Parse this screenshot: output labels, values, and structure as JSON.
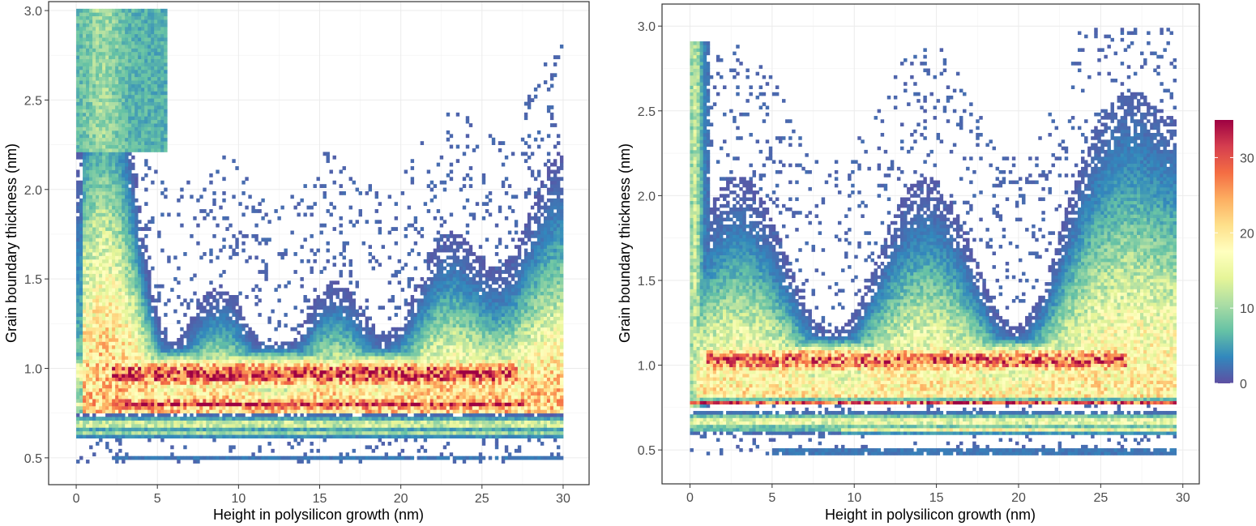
{
  "colormap": [
    "#5E4FA2",
    "#3288BD",
    "#66C2A5",
    "#ABDDA4",
    "#E6F598",
    "#FFFFBF",
    "#FEE08B",
    "#FDAE61",
    "#F46D43",
    "#D53E4F",
    "#9E0142"
  ],
  "colors": {
    "background": "#ffffff",
    "grid": "#ebebeb",
    "panel_border": "#333333",
    "tick_text": "#4d4d4d"
  },
  "chart_data": [
    {
      "type": "heatmap",
      "xlabel": "Height in polysilicon growth (nm)",
      "ylabel": "Grain boundary thickness (nm)",
      "xlim": [
        -1.7,
        31.6
      ],
      "ylim": [
        0.35,
        3.05
      ],
      "x_ticks": [
        0,
        5,
        10,
        15,
        20,
        25,
        30
      ],
      "y_ticks": [
        0.5,
        1.0,
        1.5,
        2.0,
        2.5,
        3.0
      ],
      "x_tick_labels": [
        "0",
        "5",
        "10",
        "15",
        "20",
        "25",
        "30"
      ],
      "y_tick_labels": [
        "0.5",
        "1.0",
        "1.5",
        "2.0",
        "2.5",
        "3.0"
      ],
      "grid": true,
      "bin_x": 0.2,
      "bin_y": 0.02,
      "x_range": [
        0,
        29.8
      ],
      "y_range": [
        0.47,
        3.0
      ],
      "dense_bands": [
        {
          "y": 0.97,
          "count": 32,
          "x_from": 3,
          "x_to": 26
        },
        {
          "y": 0.79,
          "count": 34,
          "x_from": 3,
          "x_to": 27
        },
        {
          "y": 0.67,
          "count": 14,
          "x_from": 0,
          "x_to": 29.5
        },
        {
          "y": 0.62,
          "count": 10,
          "x_from": 0,
          "x_to": 29.5
        },
        {
          "y": 0.49,
          "count": 3,
          "x_from": 2,
          "x_to": 29.5
        }
      ],
      "max_count": 35
    },
    {
      "type": "heatmap",
      "xlabel": "Height in polysilicon growth (nm)",
      "ylabel": "Grain boundary thickness (nm)",
      "xlim": [
        -1.7,
        31.0
      ],
      "ylim": [
        0.3,
        3.13
      ],
      "x_ticks": [
        0,
        5,
        10,
        15,
        20,
        25,
        30
      ],
      "y_ticks": [
        0.5,
        1.0,
        1.5,
        2.0,
        2.5,
        3.0
      ],
      "x_tick_labels": [
        "0",
        "5",
        "10",
        "15",
        "20",
        "25",
        "30"
      ],
      "y_tick_labels": [
        "0.5",
        "1.0",
        "1.5",
        "2.0",
        "2.5",
        "3.0"
      ],
      "grid": true,
      "bin_x": 0.2,
      "bin_y": 0.02,
      "x_range": [
        0,
        29.5
      ],
      "y_range": [
        0.47,
        2.98
      ],
      "dense_bands": [
        {
          "y": 1.02,
          "count": 30,
          "x_from": 1,
          "x_to": 26
        },
        {
          "y": 0.77,
          "count": 35,
          "x_from": 0.2,
          "x_to": 29
        },
        {
          "y": 0.65,
          "count": 16,
          "x_from": 0.2,
          "x_to": 29.3
        },
        {
          "y": 0.6,
          "count": 22,
          "x_from": 10,
          "x_to": 29
        },
        {
          "y": 0.48,
          "count": 3,
          "x_from": 5,
          "x_to": 29
        }
      ],
      "max_count": 35
    }
  ],
  "colorbar": {
    "min": 0,
    "max": 35,
    "ticks": [
      0,
      10,
      20,
      30
    ],
    "tick_labels": [
      "0",
      "10",
      "20",
      "30"
    ]
  }
}
